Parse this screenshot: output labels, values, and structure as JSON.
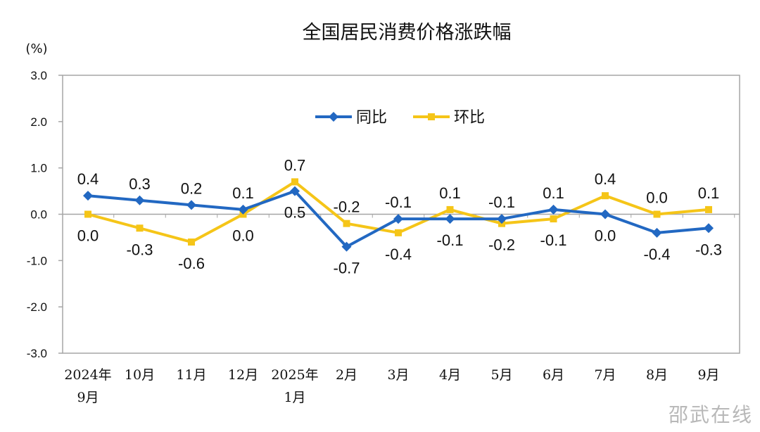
{
  "chart_data": {
    "type": "line",
    "title": "全国居民消费价格涨跌幅",
    "unit_label": "(%)",
    "ylim": [
      -3.0,
      3.0
    ],
    "yticks": [
      "3.0",
      "2.0",
      "1.0",
      "0.0",
      "-1.0",
      "-2.0",
      "-3.0"
    ],
    "ytick_values": [
      3,
      2,
      1,
      0,
      -1,
      -2,
      -3
    ],
    "categories": [
      [
        "2024年",
        "9月"
      ],
      [
        "10月"
      ],
      [
        "11月"
      ],
      [
        "12月"
      ],
      [
        "2025年",
        "1月"
      ],
      [
        "2月"
      ],
      [
        "3月"
      ],
      [
        "4月"
      ],
      [
        "5月"
      ],
      [
        "6月"
      ],
      [
        "7月"
      ],
      [
        "8月"
      ],
      [
        "9月"
      ]
    ],
    "series": [
      {
        "name": "同比",
        "color": "#2268c2",
        "marker": "diamond",
        "values": [
          0.4,
          0.3,
          0.2,
          0.1,
          0.5,
          -0.7,
          -0.1,
          -0.1,
          -0.1,
          0.1,
          0.0,
          -0.4,
          -0.3
        ],
        "labels": [
          "0.4",
          "0.3",
          "0.2",
          "0.1",
          "0.5",
          "-0.7",
          "-0.1",
          "-0.1",
          "-0.1",
          "0.1",
          "0.0",
          "-0.4",
          "-0.3"
        ],
        "label_positions": [
          "above",
          "above",
          "above",
          "above",
          "below",
          "below",
          "above",
          "below",
          "above",
          "above",
          "below",
          "below",
          "below"
        ]
      },
      {
        "name": "环比",
        "color": "#f5c518",
        "marker": "square",
        "values": [
          0.0,
          -0.3,
          -0.6,
          0.0,
          0.7,
          -0.2,
          -0.4,
          0.1,
          -0.2,
          -0.1,
          0.4,
          0.0,
          0.1
        ],
        "labels": [
          "0.0",
          "-0.3",
          "-0.6",
          "0.0",
          "0.7",
          "-0.2",
          "-0.4",
          "0.1",
          "-0.2",
          "-0.1",
          "0.4",
          "0.0",
          "0.1"
        ],
        "label_positions": [
          "below",
          "below",
          "below",
          "below",
          "above",
          "above",
          "below",
          "above",
          "below",
          "below",
          "above",
          "above",
          "above"
        ]
      }
    ],
    "legend": {
      "placement": "top-center"
    },
    "grid": false
  },
  "watermark": "邵武在线"
}
